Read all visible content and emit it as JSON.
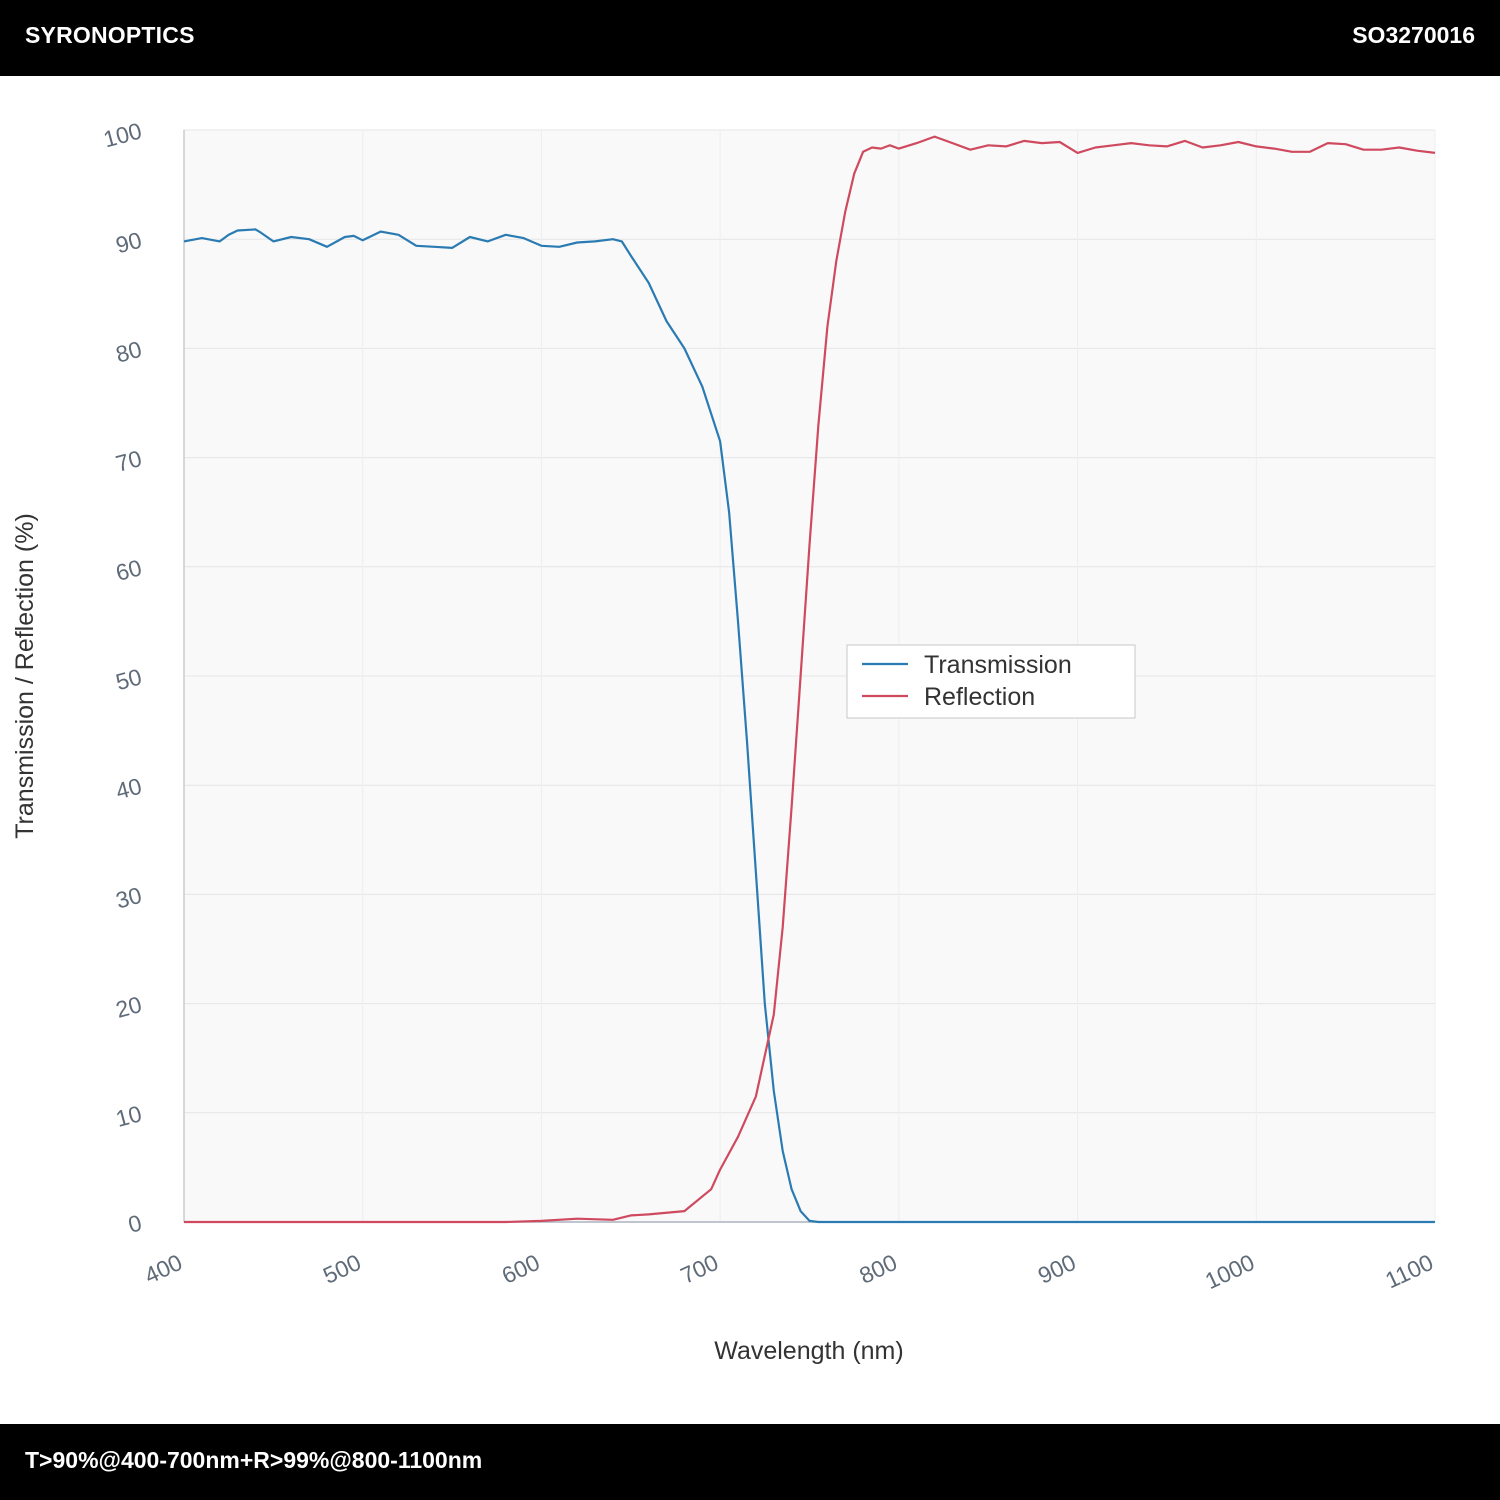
{
  "header": {
    "brand": "SYRONOPTICS",
    "sku": "SO3270016"
  },
  "footer": {
    "spec": "T>90%@400-700nm+R>99%@800-1100nm"
  },
  "colors": {
    "transmission": "#2b7bb3",
    "reflection": "#cf4a5e",
    "plot_bg": "#f9f9fa",
    "grid": "#e6e6e6"
  },
  "chart_data": {
    "type": "line",
    "xlabel": "Wavelength (nm)",
    "ylabel": "Transmission / Reflection (%)",
    "xlim": [
      400,
      1100
    ],
    "ylim": [
      0,
      100
    ],
    "xticks": [
      "400",
      "500",
      "600",
      "700",
      "800",
      "900",
      "1000",
      "1100"
    ],
    "yticks": [
      "0",
      "10",
      "20",
      "30",
      "40",
      "50",
      "60",
      "70",
      "80",
      "90",
      "100"
    ],
    "grid": true,
    "legend_position": "center",
    "series": [
      {
        "name": "Transmission",
        "x": [
          400,
          410,
          420,
          425,
          430,
          440,
          443,
          450,
          460,
          470,
          480,
          490,
          495,
          500,
          510,
          520,
          530,
          540,
          550,
          560,
          570,
          580,
          590,
          600,
          610,
          620,
          630,
          640,
          645,
          650,
          660,
          670,
          680,
          690,
          700,
          705,
          710,
          715,
          720,
          725,
          730,
          735,
          740,
          745,
          750,
          755,
          760,
          765,
          770,
          775,
          780,
          785,
          790,
          795,
          800,
          850,
          900,
          950,
          1000,
          1050,
          1100
        ],
        "values": [
          89.8,
          90.1,
          89.8,
          90.4,
          90.8,
          90.9,
          90.6,
          89.8,
          90.2,
          90.0,
          89.3,
          90.2,
          90.3,
          89.9,
          90.7,
          90.4,
          89.4,
          89.3,
          89.2,
          90.2,
          89.8,
          90.4,
          90.1,
          89.4,
          89.3,
          89.7,
          89.8,
          90.0,
          89.8,
          88.5,
          86.0,
          82.5,
          80.0,
          76.5,
          71.5,
          65.0,
          55.0,
          44.0,
          32.0,
          20.0,
          12.0,
          6.5,
          3.0,
          1.0,
          0.1,
          0,
          0,
          0,
          0,
          0,
          0,
          0,
          0,
          0,
          0,
          0,
          0,
          0,
          0,
          0,
          0
        ]
      },
      {
        "name": "Reflection",
        "x": [
          400,
          450,
          500,
          550,
          580,
          600,
          620,
          640,
          650,
          660,
          680,
          695,
          700,
          710,
          720,
          730,
          735,
          740,
          745,
          750,
          755,
          760,
          765,
          770,
          775,
          780,
          785,
          790,
          795,
          800,
          810,
          820,
          830,
          840,
          850,
          860,
          870,
          880,
          890,
          900,
          910,
          920,
          930,
          940,
          950,
          960,
          970,
          980,
          990,
          1000,
          1010,
          1020,
          1030,
          1040,
          1050,
          1060,
          1070,
          1080,
          1090,
          1100
        ],
        "values": [
          0,
          0,
          0,
          0,
          0,
          0.1,
          0.3,
          0.2,
          0.6,
          0.7,
          1.0,
          3.0,
          4.8,
          7.8,
          11.5,
          19.0,
          27.0,
          38.0,
          50.0,
          62.0,
          73.0,
          82.0,
          88.0,
          92.5,
          96.0,
          98.0,
          98.4,
          98.3,
          98.6,
          98.3,
          98.8,
          99.4,
          98.8,
          98.2,
          98.6,
          98.5,
          99.0,
          98.8,
          98.9,
          97.9,
          98.4,
          98.6,
          98.8,
          98.6,
          98.5,
          99.0,
          98.4,
          98.6,
          98.9,
          98.5,
          98.3,
          98.0,
          98.0,
          98.8,
          98.7,
          98.2,
          98.2,
          98.4,
          98.1,
          97.9
        ]
      }
    ]
  }
}
